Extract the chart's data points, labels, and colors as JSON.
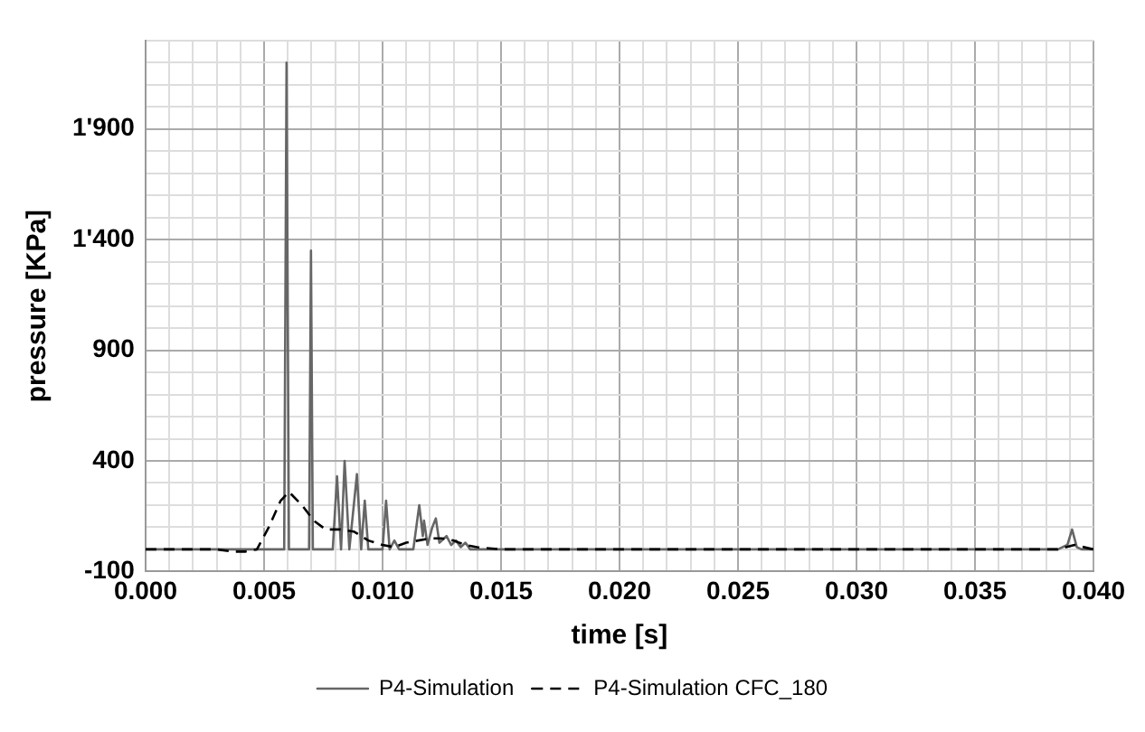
{
  "chart_data": {
    "type": "line",
    "xlabel": "time [s]",
    "ylabel": "pressure [KPa]",
    "xlim": [
      0,
      0.04
    ],
    "ylim": [
      -100,
      2300
    ],
    "xticks": [
      {
        "value": 0,
        "label": "0.000"
      },
      {
        "value": 0.001,
        "label": null
      },
      {
        "value": 0.002,
        "label": null
      },
      {
        "value": 0.003,
        "label": null
      },
      {
        "value": 0.004,
        "label": null
      },
      {
        "value": 0.005,
        "label": "0.005"
      },
      {
        "value": 0.006,
        "label": null
      },
      {
        "value": 0.007,
        "label": null
      },
      {
        "value": 0.008,
        "label": null
      },
      {
        "value": 0.009,
        "label": null
      },
      {
        "value": 0.01,
        "label": "0.010"
      },
      {
        "value": 0.011,
        "label": null
      },
      {
        "value": 0.012,
        "label": null
      },
      {
        "value": 0.013,
        "label": null
      },
      {
        "value": 0.014,
        "label": null
      },
      {
        "value": 0.015,
        "label": "0.015"
      },
      {
        "value": 0.016,
        "label": null
      },
      {
        "value": 0.017,
        "label": null
      },
      {
        "value": 0.018,
        "label": null
      },
      {
        "value": 0.019,
        "label": null
      },
      {
        "value": 0.02,
        "label": "0.020"
      },
      {
        "value": 0.021,
        "label": null
      },
      {
        "value": 0.022,
        "label": null
      },
      {
        "value": 0.023,
        "label": null
      },
      {
        "value": 0.024,
        "label": null
      },
      {
        "value": 0.025,
        "label": "0.025"
      },
      {
        "value": 0.026,
        "label": null
      },
      {
        "value": 0.027,
        "label": null
      },
      {
        "value": 0.028,
        "label": null
      },
      {
        "value": 0.029,
        "label": null
      },
      {
        "value": 0.03,
        "label": "0.030"
      },
      {
        "value": 0.031,
        "label": null
      },
      {
        "value": 0.032,
        "label": null
      },
      {
        "value": 0.033,
        "label": null
      },
      {
        "value": 0.034,
        "label": null
      },
      {
        "value": 0.035,
        "label": "0.035"
      },
      {
        "value": 0.036,
        "label": null
      },
      {
        "value": 0.037,
        "label": null
      },
      {
        "value": 0.038,
        "label": null
      },
      {
        "value": 0.039,
        "label": null
      },
      {
        "value": 0.04,
        "label": "0.040"
      }
    ],
    "yticks": [
      {
        "value": -100,
        "label": "-100"
      },
      {
        "value": 0,
        "label": null
      },
      {
        "value": 100,
        "label": null
      },
      {
        "value": 200,
        "label": null
      },
      {
        "value": 300,
        "label": null
      },
      {
        "value": 400,
        "label": "400"
      },
      {
        "value": 500,
        "label": null
      },
      {
        "value": 600,
        "label": null
      },
      {
        "value": 700,
        "label": null
      },
      {
        "value": 800,
        "label": null
      },
      {
        "value": 900,
        "label": "900"
      },
      {
        "value": 1000,
        "label": null
      },
      {
        "value": 1100,
        "label": null
      },
      {
        "value": 1200,
        "label": null
      },
      {
        "value": 1300,
        "label": null
      },
      {
        "value": 1400,
        "label": "1'400"
      },
      {
        "value": 1500,
        "label": null
      },
      {
        "value": 1600,
        "label": null
      },
      {
        "value": 1700,
        "label": null
      },
      {
        "value": 1800,
        "label": null
      },
      {
        "value": 1900,
        "label": "1'900"
      },
      {
        "value": 2000,
        "label": null
      },
      {
        "value": 2100,
        "label": null
      },
      {
        "value": 2200,
        "label": null
      },
      {
        "value": 2300,
        "label": null
      }
    ],
    "grid": true,
    "legend": "bottom",
    "marker": "none",
    "series": [
      {
        "name": "P4-Simulation",
        "color": "#666666",
        "line_style": "solid",
        "x": [
          0,
          0.0057,
          0.00585,
          0.00595,
          0.00605,
          0.0069,
          0.00698,
          0.00706,
          0.0079,
          0.00808,
          0.00825,
          0.0084,
          0.0086,
          0.00892,
          0.0091,
          0.00925,
          0.0094,
          0.01,
          0.01015,
          0.0103,
          0.0105,
          0.0107,
          0.0113,
          0.01155,
          0.0117,
          0.01175,
          0.0119,
          0.0121,
          0.01225,
          0.0124,
          0.0127,
          0.0129,
          0.0131,
          0.0133,
          0.0135,
          0.0137,
          0.015,
          0.0155,
          0.0385,
          0.0389,
          0.0391,
          0.0393,
          0.0395,
          0.04
        ],
        "values": [
          0,
          0,
          0,
          2200,
          0,
          0,
          1350,
          0,
          0,
          330,
          0,
          400,
          0,
          340,
          0,
          220,
          0,
          0,
          220,
          0,
          40,
          0,
          0,
          200,
          60,
          130,
          20,
          100,
          140,
          30,
          60,
          20,
          40,
          10,
          30,
          0,
          0,
          0,
          0,
          20,
          90,
          10,
          0,
          0
        ]
      },
      {
        "name": "P4-Simulation CFC_180",
        "color": "#000000",
        "line_style": "dashed",
        "x": [
          0,
          0.003,
          0.0037,
          0.0042,
          0.0047,
          0.0052,
          0.0057,
          0.00605,
          0.0066,
          0.0071,
          0.0076,
          0.0082,
          0.0088,
          0.0094,
          0.01,
          0.0105,
          0.011,
          0.0115,
          0.012,
          0.0125,
          0.013,
          0.0135,
          0.014,
          0.015,
          0.0385,
          0.0392,
          0.04
        ],
        "values": [
          0,
          0,
          -10,
          -10,
          0,
          100,
          220,
          260,
          200,
          130,
          90,
          90,
          80,
          40,
          20,
          10,
          30,
          40,
          50,
          50,
          40,
          20,
          10,
          0,
          0,
          20,
          0
        ]
      }
    ]
  }
}
